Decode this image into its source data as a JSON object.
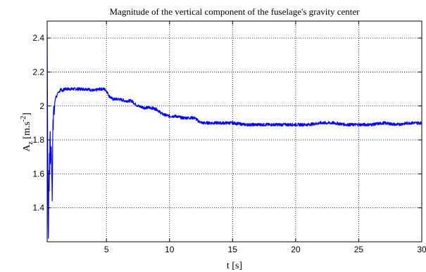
{
  "chart_data": {
    "type": "line",
    "title": "Magnitude of the vertical component of the fuselage's gravity center",
    "xlabel": "t [s]",
    "ylabel_main": "A",
    "ylabel_sub": "z",
    "ylabel_unit_pre": " [m.s",
    "ylabel_unit_sup": "-2",
    "ylabel_unit_post": "]",
    "xlim": [
      0.3,
      30
    ],
    "ylim": [
      1.2,
      2.5
    ],
    "xticks": [
      5,
      10,
      15,
      20,
      25,
      30
    ],
    "xtick_labels": [
      "5",
      "10",
      "15",
      "20",
      "25",
      "30"
    ],
    "yticks": [
      1.4,
      1.6,
      1.8,
      2.0,
      2.2,
      2.4
    ],
    "ytick_labels": [
      "1.4",
      "1.6",
      "1.8",
      "2",
      "2.2",
      "2.4"
    ],
    "grid": true,
    "line_color": "#0000ff",
    "series": [
      {
        "x": [
          0.3,
          0.33,
          0.36,
          0.38,
          0.4,
          0.42,
          0.44,
          0.46,
          0.48,
          0.5,
          0.52,
          0.54,
          0.56,
          0.58,
          0.6,
          0.62,
          0.64,
          0.66,
          0.68,
          0.7,
          0.72,
          0.74,
          0.76,
          0.78,
          0.8,
          0.83,
          0.86,
          0.9,
          0.95,
          1.0,
          1.05,
          1.1,
          1.15,
          1.2,
          1.3,
          1.4,
          1.5,
          1.7,
          2.0,
          2.5,
          3.0,
          3.5,
          4.0,
          4.5,
          4.8,
          5.0,
          5.2,
          5.5,
          6.0,
          6.5,
          7.0,
          7.3,
          7.5,
          8.0,
          8.5,
          9.0,
          9.3,
          9.5,
          10.0,
          10.5,
          11.0,
          11.5,
          12.0,
          12.3,
          12.6,
          13.0,
          14.0,
          15.0,
          16.0,
          17.0,
          18.0,
          19.0,
          20.0,
          21.0,
          22.0,
          23.0,
          24.0,
          25.0,
          26.0,
          27.0,
          28.0,
          29.0,
          30.0
        ],
        "y": [
          2.42,
          1.9,
          1.55,
          1.3,
          1.22,
          1.45,
          1.62,
          1.5,
          1.72,
          1.6,
          1.8,
          1.85,
          1.66,
          1.75,
          1.68,
          1.76,
          1.7,
          1.6,
          1.55,
          1.44,
          1.58,
          1.82,
          1.92,
          1.86,
          1.97,
          2.0,
          1.95,
          2.02,
          2.04,
          2.06,
          2.05,
          2.07,
          2.08,
          2.08,
          2.09,
          2.1,
          2.09,
          2.1,
          2.1,
          2.1,
          2.1,
          2.1,
          2.09,
          2.1,
          2.1,
          2.09,
          2.06,
          2.04,
          2.04,
          2.03,
          2.03,
          2.01,
          2.0,
          1.99,
          1.99,
          1.98,
          1.96,
          1.95,
          1.94,
          1.94,
          1.93,
          1.93,
          1.93,
          1.91,
          1.9,
          1.9,
          1.9,
          1.9,
          1.89,
          1.89,
          1.89,
          1.89,
          1.89,
          1.89,
          1.9,
          1.9,
          1.89,
          1.89,
          1.89,
          1.9,
          1.89,
          1.9,
          1.9
        ]
      }
    ]
  }
}
